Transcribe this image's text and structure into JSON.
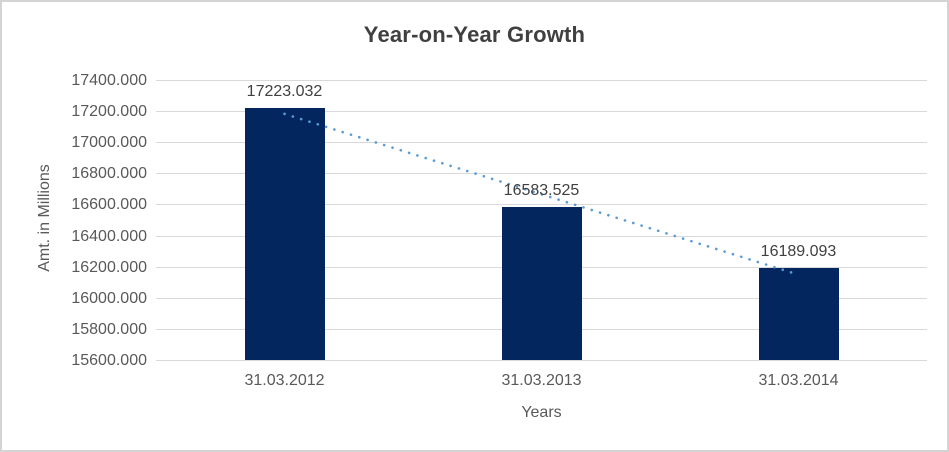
{
  "chart_data": {
    "type": "bar",
    "title": "Year-on-Year Growth",
    "xlabel": "Years",
    "ylabel": "Amt. in Millions",
    "categories": [
      "31.03.2012",
      "31.03.2013",
      "31.03.2014"
    ],
    "values": [
      17223.032,
      16583.525,
      16189.093
    ],
    "data_labels": [
      "17223.032",
      "16583.525",
      "16189.093"
    ],
    "yticks": [
      "17400.000",
      "17200.000",
      "17000.000",
      "16800.000",
      "16600.000",
      "16400.000",
      "16200.000",
      "16000.000",
      "15800.000",
      "15600.000"
    ],
    "ylim": [
      15600,
      17400
    ],
    "ytick_step": 200,
    "grid": true,
    "legend": "none",
    "trendline": {
      "type": "linear",
      "style": "dotted",
      "endpoint_values": [
        17182.19,
        16148.25
      ]
    },
    "colors": {
      "bar": "#04265e",
      "trendline": "#5b9bd5",
      "gridline": "#d9d9d9",
      "title_text": "#404040",
      "axis_text": "#595959",
      "data_label_text": "#404040",
      "chart_border": "#d4d4d4"
    }
  }
}
